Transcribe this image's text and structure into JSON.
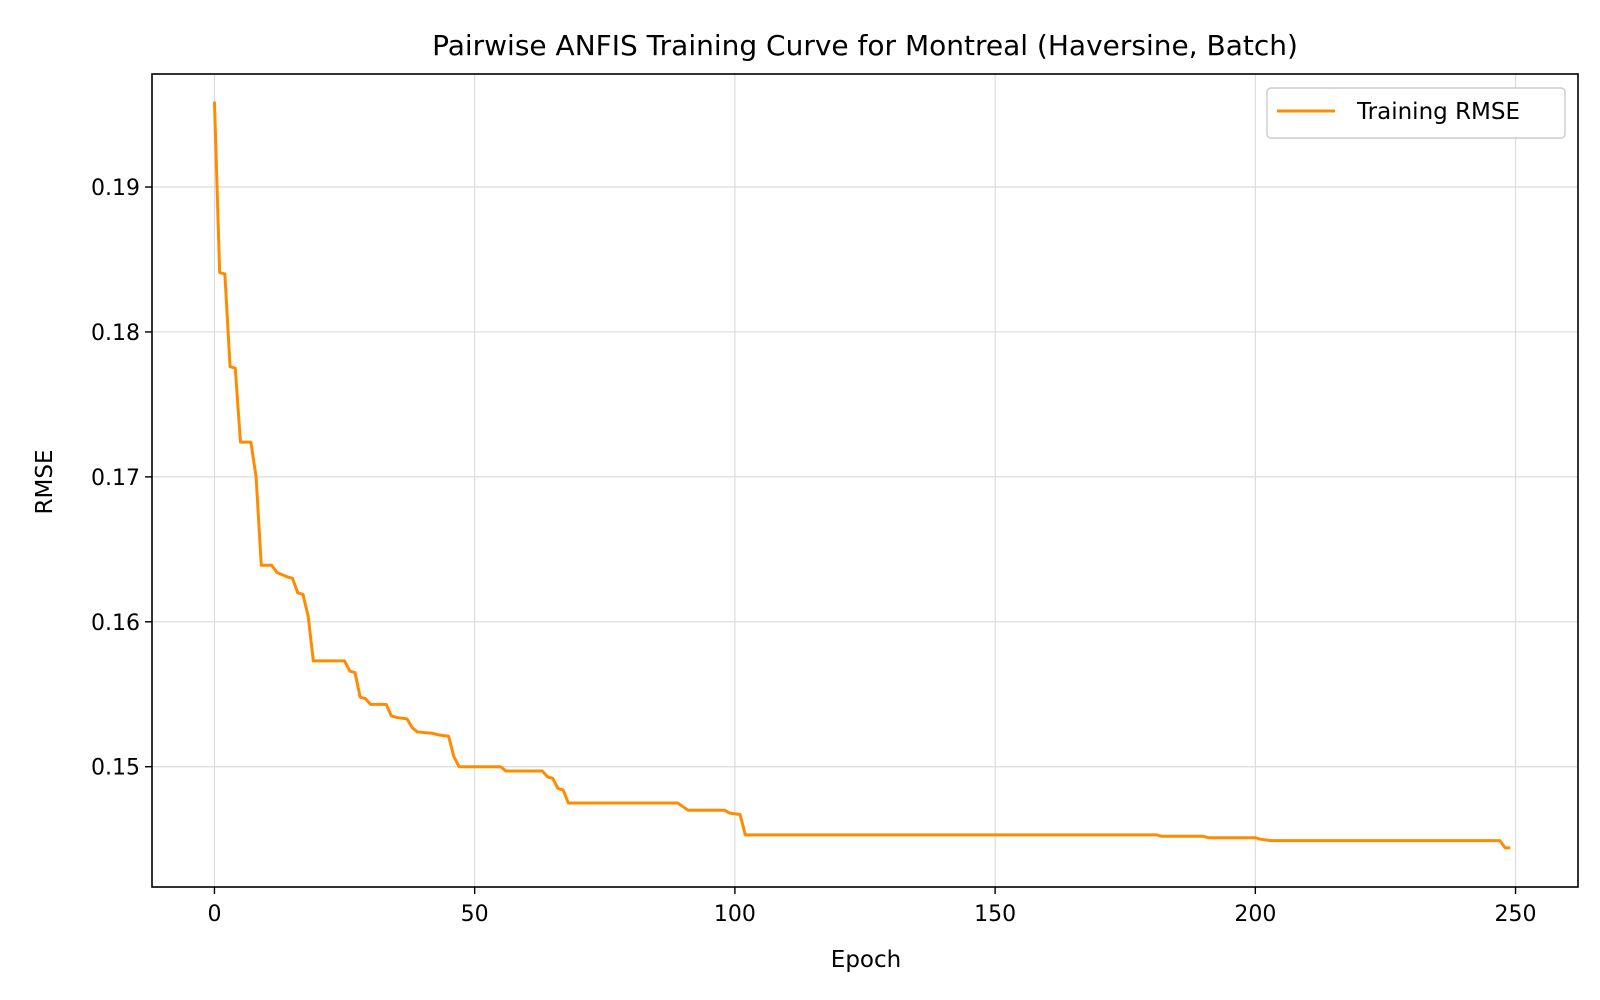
{
  "chart_data": {
    "type": "line",
    "title": "Pairwise ANFIS Training Curve for Montreal (Haversine, Batch)",
    "xlabel": "Epoch",
    "ylabel": "RMSE",
    "xlim": [
      -12,
      262
    ],
    "ylim": [
      0.1417,
      0.1978
    ],
    "xticks": [
      0,
      50,
      100,
      150,
      200,
      250
    ],
    "yticks": [
      0.15,
      0.16,
      0.17,
      0.18,
      0.19
    ],
    "xtick_labels": [
      "0",
      "50",
      "100",
      "150",
      "200",
      "250"
    ],
    "ytick_labels": [
      "0.15",
      "0.16",
      "0.17",
      "0.18",
      "0.19"
    ],
    "grid": true,
    "legend_position": "top-right",
    "series": [
      {
        "name": "Training RMSE",
        "color": "#ff8c00",
        "points": [
          [
            0,
            0.1959
          ],
          [
            1,
            0.1841
          ],
          [
            2,
            0.184
          ],
          [
            3,
            0.1776
          ],
          [
            4,
            0.1775
          ],
          [
            5,
            0.1724
          ],
          [
            7,
            0.1724
          ],
          [
            8,
            0.17
          ],
          [
            9,
            0.1639
          ],
          [
            11,
            0.1639
          ],
          [
            12,
            0.1634
          ],
          [
            14,
            0.1631
          ],
          [
            15,
            0.163
          ],
          [
            16,
            0.162
          ],
          [
            17,
            0.1619
          ],
          [
            18,
            0.1604
          ],
          [
            19,
            0.1573
          ],
          [
            25,
            0.1573
          ],
          [
            26,
            0.1566
          ],
          [
            27,
            0.1565
          ],
          [
            28,
            0.1548
          ],
          [
            29,
            0.1547
          ],
          [
            30,
            0.1543
          ],
          [
            33,
            0.1543
          ],
          [
            34,
            0.1535
          ],
          [
            35,
            0.1534
          ],
          [
            37,
            0.1533
          ],
          [
            38,
            0.1527
          ],
          [
            39,
            0.1524
          ],
          [
            42,
            0.1523
          ],
          [
            43,
            0.1522
          ],
          [
            45,
            0.1521
          ],
          [
            46,
            0.1507
          ],
          [
            47,
            0.15
          ],
          [
            55,
            0.15
          ],
          [
            56,
            0.1497
          ],
          [
            63,
            0.1497
          ],
          [
            64,
            0.1493
          ],
          [
            65,
            0.1492
          ],
          [
            66,
            0.1485
          ],
          [
            67,
            0.1484
          ],
          [
            68,
            0.1475
          ],
          [
            89,
            0.1475
          ],
          [
            91,
            0.147
          ],
          [
            98,
            0.147
          ],
          [
            99,
            0.1468
          ],
          [
            101,
            0.1467
          ],
          [
            102,
            0.1453
          ],
          [
            181,
            0.1453
          ],
          [
            182,
            0.1452
          ],
          [
            190,
            0.1452
          ],
          [
            191,
            0.1451
          ],
          [
            200,
            0.1451
          ],
          [
            201,
            0.145
          ],
          [
            203,
            0.1449
          ],
          [
            247,
            0.1449
          ],
          [
            248,
            0.1444
          ],
          [
            249,
            0.1444
          ]
        ]
      }
    ]
  }
}
